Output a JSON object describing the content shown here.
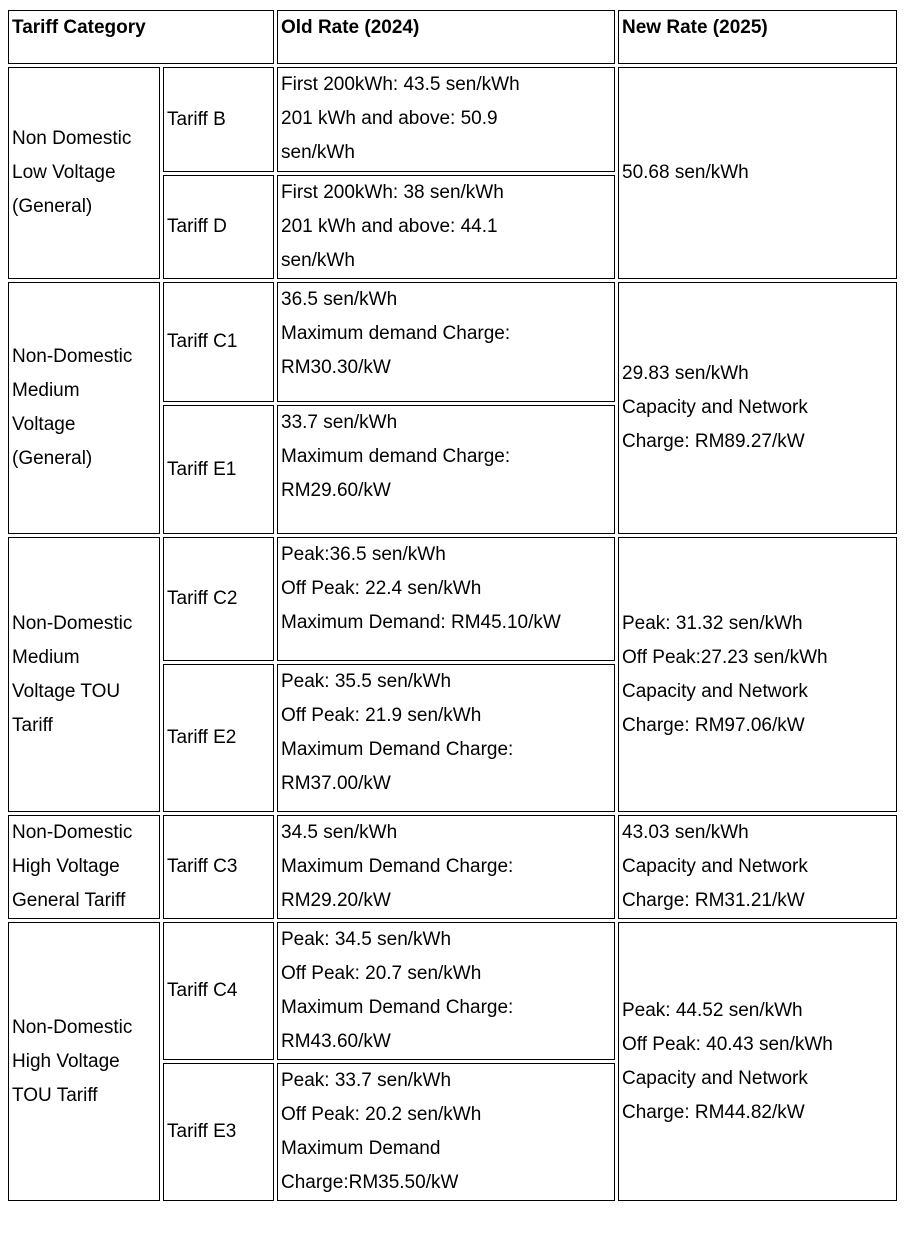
{
  "header": {
    "category": "Tariff Category",
    "old": "Old Rate (2024)",
    "new": "New Rate (2025)"
  },
  "groups": [
    {
      "category": [
        "Non Domestic",
        "Low Voltage",
        "(General)"
      ],
      "new": [
        "50.68 sen/kWh"
      ],
      "tariffs": [
        {
          "name": "Tariff B",
          "old": [
            "First 200kWh: 43.5 sen/kWh",
            "201 kWh and above: 50.9",
            "sen/kWh"
          ]
        },
        {
          "name": "Tariff D",
          "old": [
            "First 200kWh: 38 sen/kWh",
            "201 kWh and above: 44.1",
            "sen/kWh"
          ]
        }
      ]
    },
    {
      "category": [
        "Non-Domestic",
        "Medium",
        "Voltage",
        "(General)"
      ],
      "new": [
        "29.83 sen/kWh",
        "Capacity and Network",
        "Charge: RM89.27/kW"
      ],
      "tariffs": [
        {
          "name": "Tariff C1",
          "old": [
            "36.5 sen/kWh",
            "Maximum demand Charge:",
            "RM30.30/kW"
          ]
        },
        {
          "name": "Tariff E1",
          "old": [
            "33.7 sen/kWh",
            "Maximum demand Charge:",
            "RM29.60/kW"
          ]
        }
      ]
    },
    {
      "category": [
        "Non-Domestic",
        "Medium",
        "Voltage TOU",
        "Tariff"
      ],
      "new": [
        "Peak: 31.32 sen/kWh",
        "Off Peak:27.23 sen/kWh",
        "Capacity and Network",
        "Charge: RM97.06/kW"
      ],
      "tariffs": [
        {
          "name": "Tariff C2",
          "old": [
            "Peak:36.5 sen/kWh",
            "Off Peak: 22.4 sen/kWh",
            "Maximum Demand: RM45.10/kW"
          ]
        },
        {
          "name": "Tariff E2",
          "old": [
            "Peak: 35.5 sen/kWh",
            "Off Peak: 21.9 sen/kWh",
            "Maximum Demand Charge:",
            "RM37.00/kW"
          ]
        }
      ]
    },
    {
      "category": [
        "Non-Domestic",
        "High Voltage",
        "General Tariff"
      ],
      "new": [
        "43.03 sen/kWh",
        "Capacity and Network",
        "Charge: RM31.21/kW"
      ],
      "tariffs": [
        {
          "name": "Tariff C3",
          "old": [
            "34.5 sen/kWh",
            "Maximum Demand Charge:",
            "RM29.20/kW"
          ]
        }
      ]
    },
    {
      "category": [
        "Non-Domestic",
        "High Voltage",
        "TOU Tariff"
      ],
      "new": [
        "Peak: 44.52 sen/kWh",
        "Off Peak: 40.43 sen/kWh",
        "Capacity and Network",
        "Charge: RM44.82/kW"
      ],
      "tariffs": [
        {
          "name": "Tariff C4",
          "old": [
            "Peak: 34.5 sen/kWh",
            "Off Peak: 20.7 sen/kWh",
            "Maximum Demand Charge:",
            "RM43.60/kW"
          ]
        },
        {
          "name": "Tariff E3",
          "old": [
            "Peak: 33.7 sen/kWh",
            "Off Peak: 20.2 sen/kWh",
            "Maximum Demand",
            "Charge:RM35.50/kW"
          ]
        }
      ]
    }
  ]
}
